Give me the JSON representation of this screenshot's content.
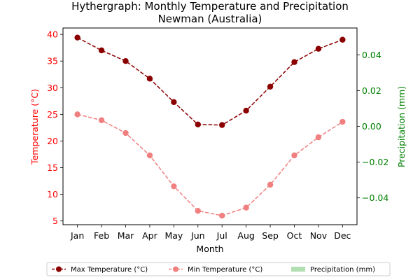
{
  "chart_data": {
    "type": "line",
    "title": "Hythergraph: Monthly Temperature and Precipitation",
    "subtitle": "Newman (Australia)",
    "xlabel": "Month",
    "ylabel_left": "Temperature (°C)",
    "ylabel_right": "Precipitation (mm)",
    "categories": [
      "Jan",
      "Feb",
      "Mar",
      "Apr",
      "May",
      "Jun",
      "Jul",
      "Aug",
      "Sep",
      "Oct",
      "Nov",
      "Dec"
    ],
    "left_axis": {
      "range": [
        4.3,
        41.2
      ],
      "ticks": [
        5,
        10,
        15,
        20,
        25,
        30,
        35,
        40
      ],
      "color": "#ff0000"
    },
    "right_axis": {
      "range": [
        -0.055,
        0.055
      ],
      "ticks": [
        -0.04,
        -0.02,
        0.0,
        0.02,
        0.04
      ],
      "tick_labels": [
        "−0.04",
        "−0.02",
        "0.00",
        "0.02",
        "0.04"
      ],
      "color": "#008000"
    },
    "grid": false,
    "legend_position": "bottom",
    "series": [
      {
        "name": "Max Temperature (°C)",
        "axis": "left",
        "color": "#8b0000",
        "style": "dashed-marker",
        "values": [
          39.4,
          37.0,
          35.0,
          31.7,
          27.3,
          23.1,
          23.0,
          25.7,
          30.2,
          34.8,
          37.3,
          39.0
        ]
      },
      {
        "name": "Min Temperature (°C)",
        "axis": "left",
        "color": "#f08080",
        "style": "dashed-marker",
        "values": [
          25.0,
          23.9,
          21.5,
          17.3,
          11.5,
          6.9,
          6.0,
          7.5,
          11.8,
          17.3,
          20.7,
          23.6
        ]
      },
      {
        "name": "Precipitation (mm)",
        "axis": "right",
        "color": "#b2dfb2",
        "style": "bar",
        "values": [
          0,
          0,
          0,
          0,
          0,
          0,
          0,
          0,
          0,
          0,
          0,
          0
        ]
      }
    ]
  }
}
